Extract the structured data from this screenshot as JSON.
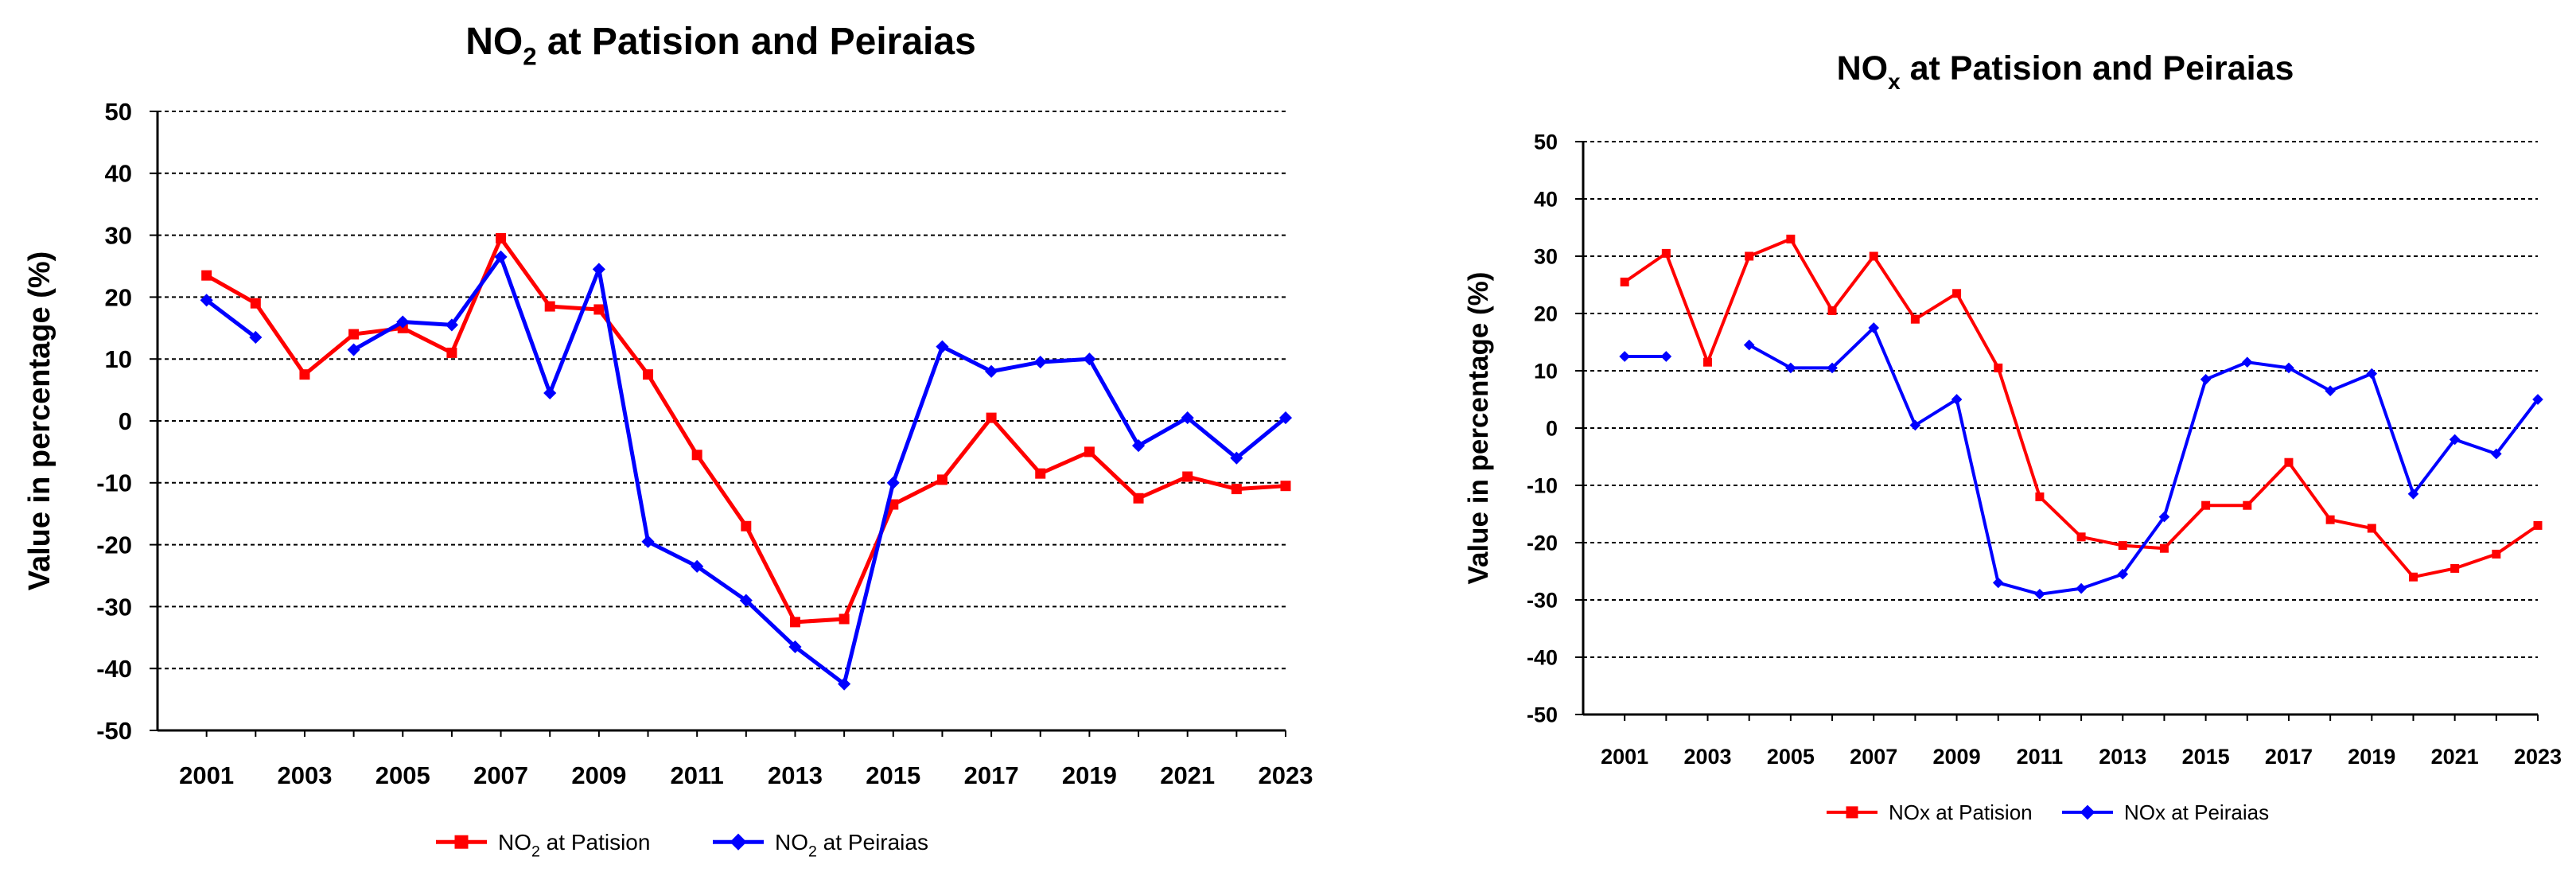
{
  "chart_data": [
    {
      "type": "line",
      "title_main": "NO",
      "title_sub": "2",
      "title_rest": " at Patision and Peiraias",
      "xlabel": "",
      "ylabel": "Value in percentage (%)",
      "ylim": [
        -50,
        50
      ],
      "yticks": [
        50,
        40,
        30,
        20,
        10,
        0,
        -10,
        -20,
        -30,
        -40,
        -50
      ],
      "xlim": [
        2000,
        2023
      ],
      "xticks": [
        2001,
        2003,
        2005,
        2007,
        2009,
        2011,
        2013,
        2015,
        2017,
        2019,
        2021,
        2023
      ],
      "grid": true,
      "series": [
        {
          "name": "NO2 at Patision",
          "legend_main": "NO",
          "legend_sub": "2",
          "legend_rest": " at Patision",
          "color": "#ff0000",
          "marker": "square",
          "x": [
            2001,
            2002,
            2003,
            2004,
            2005,
            2006,
            2007,
            2008,
            2009,
            2010,
            2011,
            2012,
            2013,
            2014,
            2015,
            2016,
            2017,
            2018,
            2019,
            2020,
            2021,
            2022,
            2023
          ],
          "values": [
            23.5,
            19,
            7.5,
            14,
            15,
            11,
            29.5,
            18.5,
            18,
            7.5,
            -5.5,
            -17,
            -32.5,
            -32,
            -13.5,
            -9.5,
            0.5,
            -8.5,
            -5,
            -12.5,
            -9,
            -11,
            -10.5
          ]
        },
        {
          "name": "NO2 at Peiraias",
          "legend_main": "NO",
          "legend_sub": "2",
          "legend_rest": " at Peiraias",
          "color": "#0000ff",
          "marker": "diamond",
          "x": [
            2001,
            2002,
            2003,
            2004,
            2005,
            2006,
            2007,
            2008,
            2009,
            2010,
            2011,
            2012,
            2013,
            2014,
            2015,
            2016,
            2017,
            2018,
            2019,
            2020,
            2021,
            2022,
            2023
          ],
          "values": [
            19.5,
            13.5,
            null,
            11.5,
            16,
            15.5,
            26.5,
            4.5,
            24.5,
            -19.5,
            -23.5,
            -29,
            -36.5,
            -42.5,
            -10,
            12,
            8,
            9.5,
            10,
            -4,
            0.5,
            -6,
            0.5
          ]
        }
      ]
    },
    {
      "type": "line",
      "title_main": "NO",
      "title_sub": "x",
      "title_rest": " at Patision and Peiraias",
      "xlabel": "",
      "ylabel": "Value in percentage (%)",
      "ylim": [
        -50,
        50
      ],
      "yticks": [
        50,
        40,
        30,
        20,
        10,
        0,
        -10,
        -20,
        -30,
        -40,
        -50
      ],
      "xlim": [
        2000,
        2023
      ],
      "xticks": [
        2001,
        2003,
        2005,
        2007,
        2009,
        2011,
        2013,
        2015,
        2017,
        2019,
        2021,
        2023
      ],
      "grid": true,
      "series": [
        {
          "name": "NOx at Patision",
          "legend_main": "NOx at Patision",
          "legend_sub": "",
          "legend_rest": "",
          "color": "#ff0000",
          "marker": "square",
          "x": [
            2001,
            2002,
            2003,
            2004,
            2005,
            2006,
            2007,
            2008,
            2009,
            2010,
            2011,
            2012,
            2013,
            2014,
            2015,
            2016,
            2017,
            2018,
            2019,
            2020,
            2021,
            2022,
            2023
          ],
          "values": [
            25.5,
            30.5,
            11.5,
            30,
            33,
            20.5,
            30,
            19,
            23.5,
            10.5,
            -12,
            -19,
            -20.5,
            -21,
            -13.5,
            -13.5,
            -6,
            -16,
            -17.5,
            -26,
            -24.5,
            -22,
            -17
          ]
        },
        {
          "name": "NOx at Peiraias",
          "legend_main": "NOx at Peiraias",
          "legend_sub": "",
          "legend_rest": "",
          "color": "#0000ff",
          "marker": "diamond",
          "x": [
            2001,
            2002,
            2003,
            2004,
            2005,
            2006,
            2007,
            2008,
            2009,
            2010,
            2011,
            2012,
            2013,
            2014,
            2015,
            2016,
            2017,
            2018,
            2019,
            2020,
            2021,
            2022,
            2023
          ],
          "values": [
            12.5,
            12.5,
            null,
            14.5,
            10.5,
            10.5,
            17.5,
            0.5,
            5,
            -27,
            -29,
            -28,
            -25.5,
            -15.5,
            8.5,
            11.5,
            10.5,
            6.5,
            9.5,
            -11.5,
            -2,
            -4.5,
            5
          ]
        }
      ]
    }
  ]
}
